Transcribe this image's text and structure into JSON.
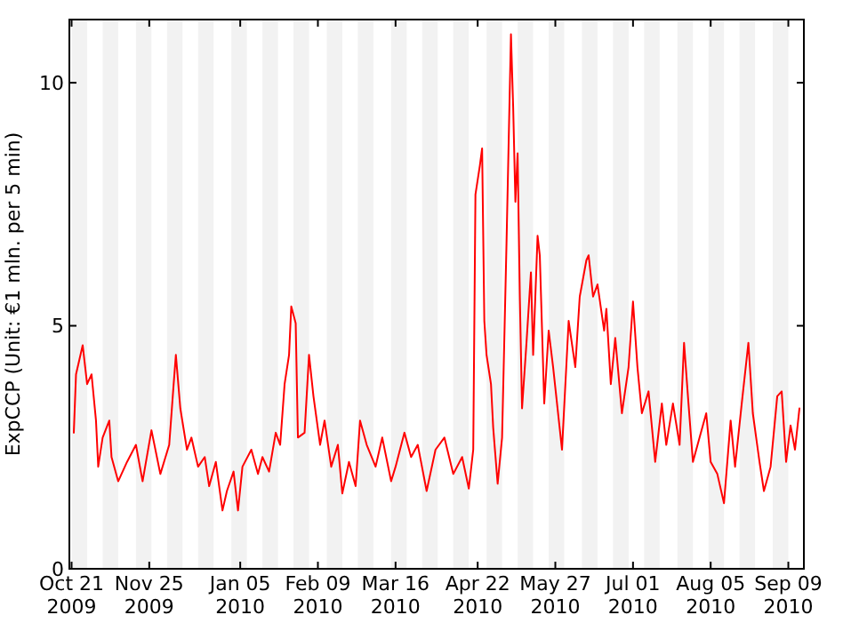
{
  "chart_data": {
    "type": "line",
    "ylabel": "ExpCCP (Unit: €1 mln. per 5 min)",
    "xlim": [
      "2009-10-20",
      "2010-09-16"
    ],
    "ylim": [
      0,
      11.3
    ],
    "yticks": [
      0,
      5,
      10
    ],
    "xticks": [
      {
        "value": "2009-10-21",
        "label": "Oct 21\n2009"
      },
      {
        "value": "2009-11-25",
        "label": "Nov 25\n2009"
      },
      {
        "value": "2010-01-05",
        "label": "Jan 05\n2010"
      },
      {
        "value": "2010-02-09",
        "label": "Feb 09\n2010"
      },
      {
        "value": "2010-03-16",
        "label": "Mar 16\n2010"
      },
      {
        "value": "2010-04-22",
        "label": "Apr 22\n2010"
      },
      {
        "value": "2010-05-27",
        "label": "May 27\n2010"
      },
      {
        "value": "2010-07-01",
        "label": "Jul 01\n2010"
      },
      {
        "value": "2010-08-05",
        "label": "Aug 05\n2010"
      },
      {
        "value": "2010-09-09",
        "label": "Sep 09\n2010"
      }
    ],
    "grid": false,
    "marker": "none",
    "line_style": "solid",
    "bands": [
      {
        "axis": "x",
        "from": "2009-10-21",
        "to": "2009-10-28",
        "color": "#f2f2f2"
      },
      {
        "axis": "x",
        "from": "2009-11-04",
        "to": "2009-11-11",
        "color": "#f2f2f2"
      },
      {
        "axis": "x",
        "from": "2009-11-19",
        "to": "2009-11-26",
        "color": "#f2f2f2"
      },
      {
        "axis": "x",
        "from": "2009-12-03",
        "to": "2009-12-10",
        "color": "#f2f2f2"
      },
      {
        "axis": "x",
        "from": "2009-12-17",
        "to": "2009-12-24",
        "color": "#f2f2f2"
      },
      {
        "axis": "x",
        "from": "2010-01-01",
        "to": "2010-01-08",
        "color": "#f2f2f2"
      },
      {
        "axis": "x",
        "from": "2010-01-15",
        "to": "2010-01-22",
        "color": "#f2f2f2"
      },
      {
        "axis": "x",
        "from": "2010-01-29",
        "to": "2010-02-05",
        "color": "#f2f2f2"
      },
      {
        "axis": "x",
        "from": "2010-02-13",
        "to": "2010-02-20",
        "color": "#f2f2f2"
      },
      {
        "axis": "x",
        "from": "2010-02-27",
        "to": "2010-03-06",
        "color": "#f2f2f2"
      },
      {
        "axis": "x",
        "from": "2010-03-14",
        "to": "2010-03-21",
        "color": "#f2f2f2"
      },
      {
        "axis": "x",
        "from": "2010-03-28",
        "to": "2010-04-04",
        "color": "#f2f2f2"
      },
      {
        "axis": "x",
        "from": "2010-04-11",
        "to": "2010-04-18",
        "color": "#f2f2f2"
      },
      {
        "axis": "x",
        "from": "2010-04-26",
        "to": "2010-05-03",
        "color": "#f2f2f2"
      },
      {
        "axis": "x",
        "from": "2010-05-10",
        "to": "2010-05-17",
        "color": "#f2f2f2"
      },
      {
        "axis": "x",
        "from": "2010-05-24",
        "to": "2010-05-31",
        "color": "#f2f2f2"
      },
      {
        "axis": "x",
        "from": "2010-06-08",
        "to": "2010-06-15",
        "color": "#f2f2f2"
      },
      {
        "axis": "x",
        "from": "2010-06-22",
        "to": "2010-06-29",
        "color": "#f2f2f2"
      },
      {
        "axis": "x",
        "from": "2010-07-06",
        "to": "2010-07-13",
        "color": "#f2f2f2"
      },
      {
        "axis": "x",
        "from": "2010-07-21",
        "to": "2010-07-28",
        "color": "#f2f2f2"
      },
      {
        "axis": "x",
        "from": "2010-08-04",
        "to": "2010-08-11",
        "color": "#f2f2f2"
      },
      {
        "axis": "x",
        "from": "2010-08-18",
        "to": "2010-08-25",
        "color": "#f2f2f2"
      },
      {
        "axis": "x",
        "from": "2010-09-02",
        "to": "2010-09-09",
        "color": "#f2f2f2"
      }
    ],
    "series": [
      {
        "color": "#ff0000",
        "x": [
          "2009-10-22",
          "2009-10-23",
          "2009-10-26",
          "2009-10-28",
          "2009-10-30",
          "2009-11-01",
          "2009-11-02",
          "2009-11-04",
          "2009-11-07",
          "2009-11-08",
          "2009-11-11",
          "2009-11-15",
          "2009-11-19",
          "2009-11-22",
          "2009-11-26",
          "2009-11-30",
          "2009-12-04",
          "2009-12-06",
          "2009-12-07",
          "2009-12-09",
          "2009-12-12",
          "2009-12-14",
          "2009-12-17",
          "2009-12-20",
          "2009-12-22",
          "2009-12-25",
          "2009-12-28",
          "2009-12-30",
          "2010-01-02",
          "2010-01-04",
          "2010-01-06",
          "2010-01-10",
          "2010-01-13",
          "2010-01-15",
          "2010-01-18",
          "2010-01-21",
          "2010-01-23",
          "2010-01-25",
          "2010-01-27",
          "2010-01-28",
          "2010-01-30",
          "2010-01-31",
          "2010-02-03",
          "2010-02-05",
          "2010-02-07",
          "2010-02-10",
          "2010-02-12",
          "2010-02-15",
          "2010-02-18",
          "2010-02-20",
          "2010-02-23",
          "2010-02-26",
          "2010-02-28",
          "2010-03-03",
          "2010-03-07",
          "2010-03-10",
          "2010-03-14",
          "2010-03-16",
          "2010-03-20",
          "2010-03-23",
          "2010-03-26",
          "2010-03-30",
          "2010-04-03",
          "2010-04-07",
          "2010-04-11",
          "2010-04-15",
          "2010-04-18",
          "2010-04-20",
          "2010-04-21",
          "2010-04-23",
          "2010-04-24",
          "2010-04-25",
          "2010-04-26",
          "2010-04-28",
          "2010-04-29",
          "2010-05-01",
          "2010-05-03",
          "2010-05-05",
          "2010-05-07",
          "2010-05-08",
          "2010-05-09",
          "2010-05-10",
          "2010-05-11",
          "2010-05-12",
          "2010-05-14",
          "2010-05-16",
          "2010-05-17",
          "2010-05-19",
          "2010-05-20",
          "2010-05-22",
          "2010-05-24",
          "2010-05-26",
          "2010-05-30",
          "2010-06-02",
          "2010-06-05",
          "2010-06-07",
          "2010-06-10",
          "2010-06-11",
          "2010-06-13",
          "2010-06-15",
          "2010-06-18",
          "2010-06-19",
          "2010-06-21",
          "2010-06-23",
          "2010-06-26",
          "2010-06-29",
          "2010-07-01",
          "2010-07-03",
          "2010-07-05",
          "2010-07-08",
          "2010-07-11",
          "2010-07-14",
          "2010-07-16",
          "2010-07-19",
          "2010-07-22",
          "2010-07-24",
          "2010-07-26",
          "2010-07-28",
          "2010-07-31",
          "2010-08-03",
          "2010-08-05",
          "2010-08-08",
          "2010-08-11",
          "2010-08-14",
          "2010-08-16",
          "2010-08-19",
          "2010-08-22",
          "2010-08-24",
          "2010-08-27",
          "2010-08-29",
          "2010-09-01",
          "2010-09-04",
          "2010-09-06",
          "2010-09-08",
          "2010-09-10",
          "2010-09-12",
          "2010-09-14"
        ],
        "values": [
          2.8,
          4.0,
          4.6,
          3.8,
          4.0,
          3.05,
          2.1,
          2.7,
          3.05,
          2.3,
          1.8,
          2.2,
          2.55,
          1.8,
          2.85,
          1.95,
          2.55,
          3.8,
          4.4,
          3.3,
          2.45,
          2.7,
          2.1,
          2.3,
          1.7,
          2.2,
          1.2,
          1.6,
          2.0,
          1.2,
          2.1,
          2.45,
          1.95,
          2.3,
          2.0,
          2.8,
          2.55,
          3.8,
          4.4,
          5.4,
          5.05,
          2.7,
          2.8,
          4.4,
          3.55,
          2.55,
          3.05,
          2.1,
          2.55,
          1.55,
          2.2,
          1.7,
          3.05,
          2.55,
          2.1,
          2.7,
          1.8,
          2.1,
          2.8,
          2.3,
          2.55,
          1.6,
          2.45,
          2.7,
          1.95,
          2.3,
          1.65,
          2.45,
          7.7,
          8.3,
          8.65,
          5.1,
          4.4,
          3.8,
          2.9,
          1.75,
          2.7,
          6.7,
          11.0,
          9.5,
          7.55,
          8.55,
          5.6,
          3.3,
          4.65,
          6.1,
          4.4,
          6.85,
          6.45,
          3.4,
          4.9,
          4.15,
          2.45,
          5.1,
          4.15,
          5.6,
          6.35,
          6.45,
          5.6,
          5.85,
          4.9,
          5.35,
          3.8,
          4.75,
          3.2,
          4.15,
          5.5,
          4.15,
          3.2,
          3.65,
          2.2,
          3.4,
          2.55,
          3.4,
          2.55,
          4.65,
          3.4,
          2.2,
          2.7,
          3.2,
          2.2,
          1.95,
          1.35,
          3.05,
          2.1,
          3.4,
          4.65,
          3.2,
          2.2,
          1.6,
          2.1,
          3.55,
          3.65,
          2.2,
          2.95,
          2.45,
          3.3
        ]
      }
    ]
  }
}
